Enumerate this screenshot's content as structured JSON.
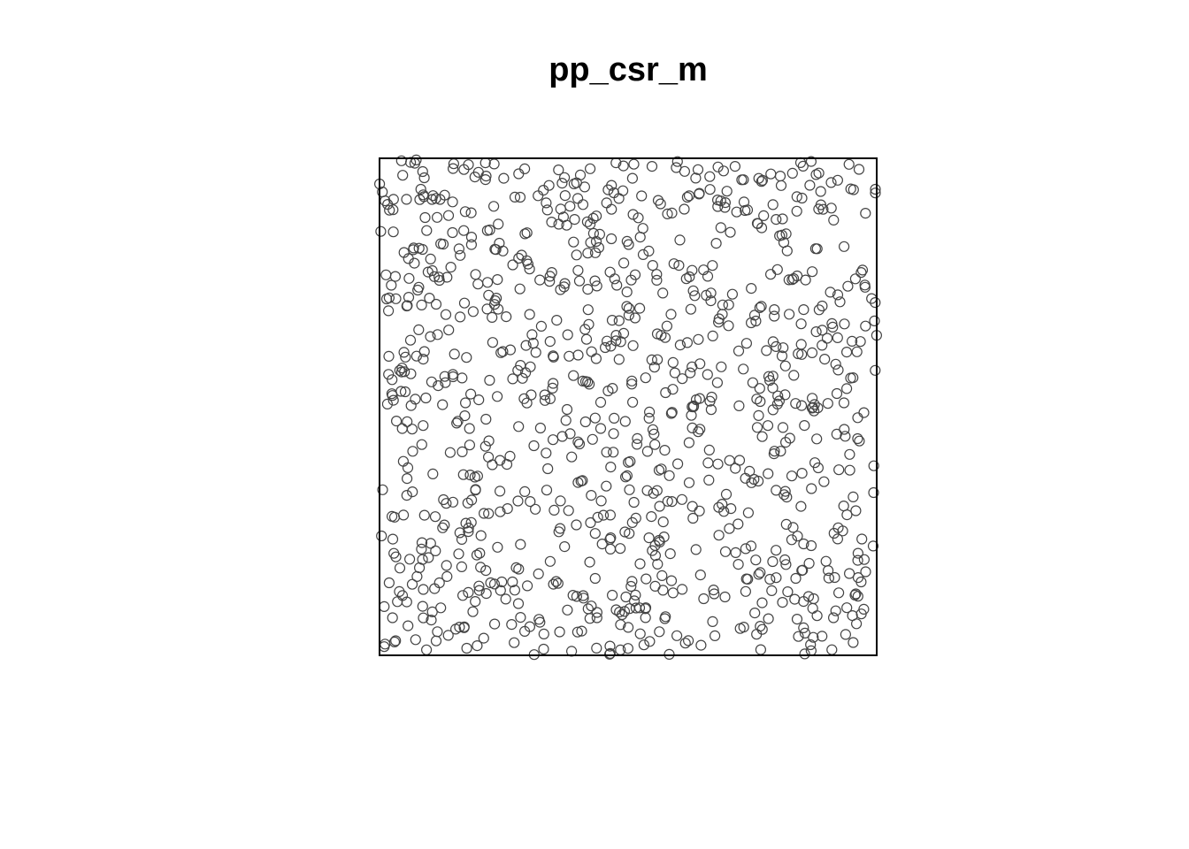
{
  "chart_data": {
    "type": "scatter",
    "title": "pp_csr_m",
    "xlabel": "",
    "ylabel": "",
    "xlim": [
      0,
      1
    ],
    "ylim": [
      0,
      1
    ],
    "axes_shown": false,
    "grid": false,
    "legend": "none",
    "window": "unit square",
    "n_points": 1000,
    "marker": "open-circle",
    "marker_color": "#444444",
    "frame_color": "#000000",
    "seed": 20240611
  }
}
